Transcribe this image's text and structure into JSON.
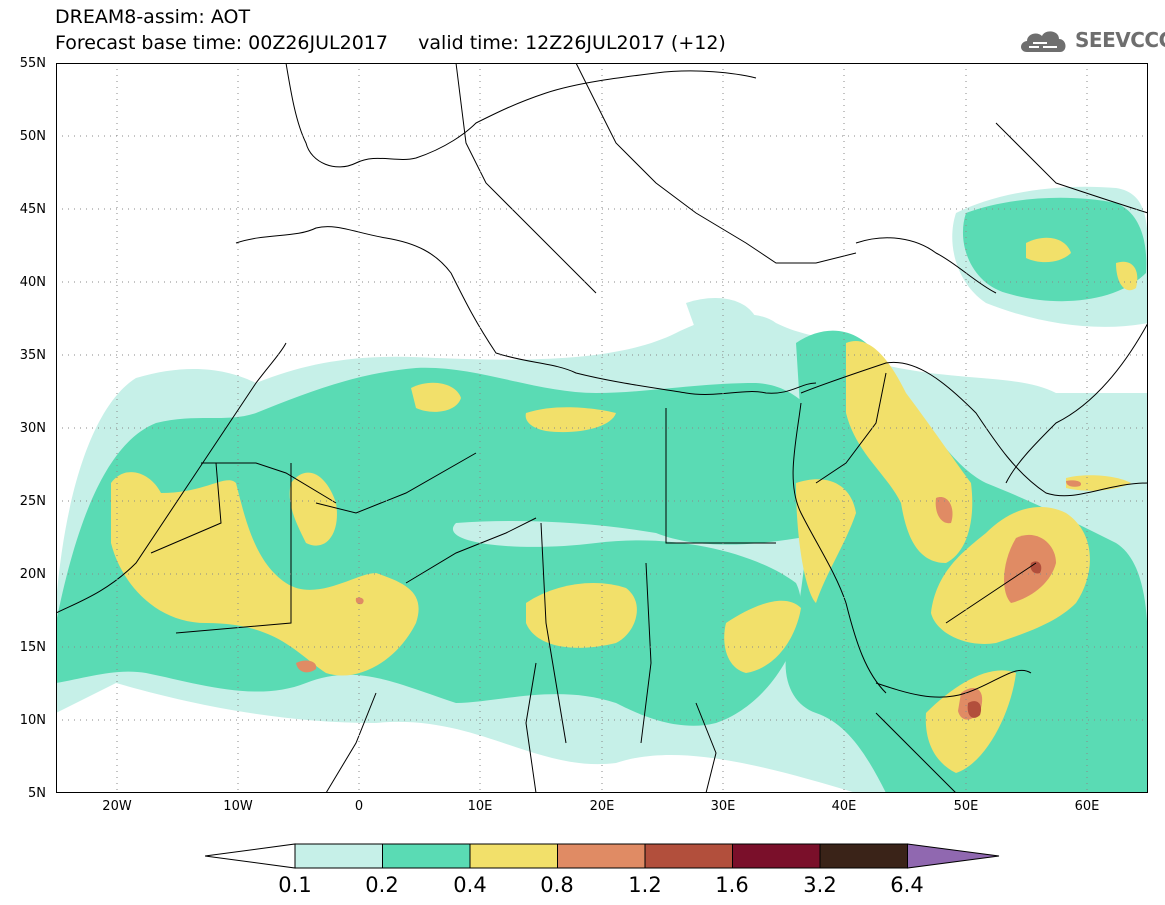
{
  "header": {
    "title_line1": "DREAM8-assim: AOT",
    "title_line2": "Forecast base time: 00Z26JUL2017     valid time: 12Z26JUL2017 (+12)",
    "logo_text": "SEEVCCC"
  },
  "map": {
    "variable": "AOT",
    "lat_labels": [
      "55N",
      "50N",
      "45N",
      "40N",
      "35N",
      "30N",
      "25N",
      "20N",
      "15N",
      "10N",
      "5N"
    ],
    "lon_labels": [
      "20W",
      "10W",
      "0",
      "10E",
      "20E",
      "30E",
      "40E",
      "50E",
      "60E"
    ],
    "lat_range": [
      5,
      55
    ],
    "lon_range": [
      -25,
      65
    ],
    "gridlines": "dotted"
  },
  "legend": {
    "levels": [
      "0.1",
      "0.2",
      "0.4",
      "0.8",
      "1.2",
      "1.6",
      "3.2",
      "6.4"
    ],
    "colors": [
      "#c6f0e8",
      "#5adbb4",
      "#f2e06a",
      "#e08b64",
      "#b24f3c",
      "#7a0f2a",
      "#3a2318",
      "#9068b0"
    ],
    "under_color": "#ffffff"
  }
}
